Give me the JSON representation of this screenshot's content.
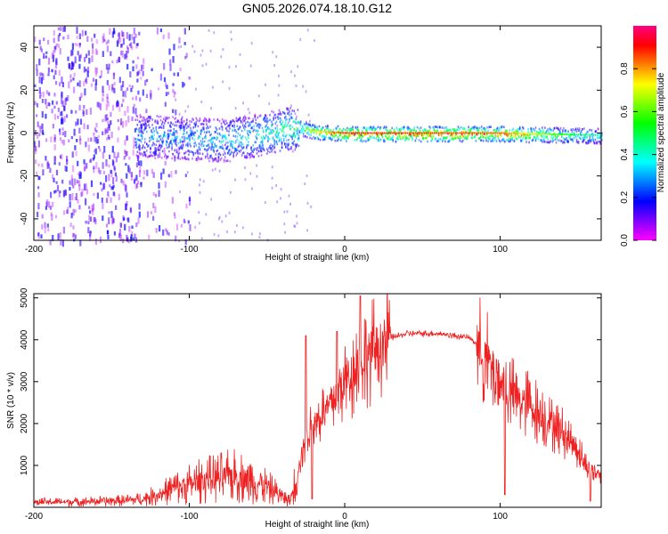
{
  "title": "GN05.2026.074.18.10.G12",
  "chart_data": [
    {
      "type": "heatmap",
      "title": "GN05.2026.074.18.10.G12",
      "xlabel": "Height of straight line (km)",
      "ylabel": "Frequency (Hz)",
      "xlim": [
        -200,
        165
      ],
      "ylim": [
        -50,
        50
      ],
      "xticks": [
        "-200",
        "-100",
        "0",
        "100"
      ],
      "yticks": [
        "-40",
        "-20",
        "0",
        "20",
        "40"
      ],
      "colorbar": {
        "label": "Normalized spectral amplitude",
        "range": [
          0,
          1
        ],
        "ticks": [
          "0.0",
          "0.2",
          "0.4",
          "0.6",
          "0.8"
        ],
        "colors": [
          "#ff00ff",
          "#8000ff",
          "#0000ff",
          "#0080ff",
          "#00ffff",
          "#00ff80",
          "#00ff00",
          "#80ff00",
          "#ffff00",
          "#ff8000",
          "#ff0000",
          "#ff0080"
        ]
      },
      "ridge": {
        "description": "dominant signal near 0 Hz",
        "points": [
          [
            -130,
            -1
          ],
          [
            -100,
            -2
          ],
          [
            -80,
            -3
          ],
          [
            -60,
            -1
          ],
          [
            -40,
            2
          ],
          [
            -30,
            3
          ],
          [
            -20,
            1
          ],
          [
            0,
            0
          ],
          [
            100,
            0
          ],
          [
            165,
            -1
          ]
        ],
        "amplitude": [
          [
            -130,
            0.3
          ],
          [
            -100,
            0.35
          ],
          [
            -60,
            0.4
          ],
          [
            -35,
            0.5
          ],
          [
            -20,
            0.7
          ],
          [
            0,
            0.9
          ],
          [
            100,
            0.85
          ],
          [
            140,
            0.55
          ],
          [
            165,
            0.4
          ]
        ]
      },
      "noise_region": {
        "x": [
          -200,
          -130
        ],
        "y": [
          -50,
          50
        ],
        "amplitude": 0.15
      }
    },
    {
      "type": "line",
      "xlabel": "Height of straight line (km)",
      "ylabel": "SNR (10 * v/v)",
      "xlim": [
        -200,
        165
      ],
      "ylim": [
        0,
        5100
      ],
      "xticks": [
        "-200",
        "-100",
        "0",
        "100"
      ],
      "yticks": [
        "1000",
        "2000",
        "3000",
        "4000",
        "5000"
      ],
      "color": "#ee2222",
      "series": [
        {
          "name": "SNR",
          "x": [
            -200,
            -180,
            -160,
            -140,
            -130,
            -120,
            -110,
            -100,
            -90,
            -80,
            -70,
            -60,
            -50,
            -40,
            -35,
            -30,
            -25,
            -20,
            -15,
            -10,
            -5,
            0,
            5,
            10,
            20,
            30,
            40,
            50,
            60,
            70,
            80,
            85,
            90,
            100,
            110,
            120,
            130,
            140,
            150,
            155,
            160,
            165
          ],
          "y": [
            120,
            130,
            140,
            160,
            200,
            300,
            450,
            550,
            650,
            700,
            750,
            650,
            500,
            250,
            150,
            900,
            1700,
            2000,
            2200,
            2400,
            2700,
            3000,
            3250,
            3500,
            3800,
            4050,
            4150,
            4150,
            4150,
            4100,
            4050,
            3900,
            3600,
            3000,
            2600,
            2400,
            2100,
            1800,
            1400,
            1000,
            850,
            800
          ]
        }
      ],
      "spikes": [
        [
          -25,
          4100
        ],
        [
          -21,
          200
        ],
        [
          -5,
          4200
        ],
        [
          10,
          5050
        ],
        [
          12,
          3300
        ],
        [
          103,
          300
        ],
        [
          158,
          150
        ]
      ]
    }
  ]
}
